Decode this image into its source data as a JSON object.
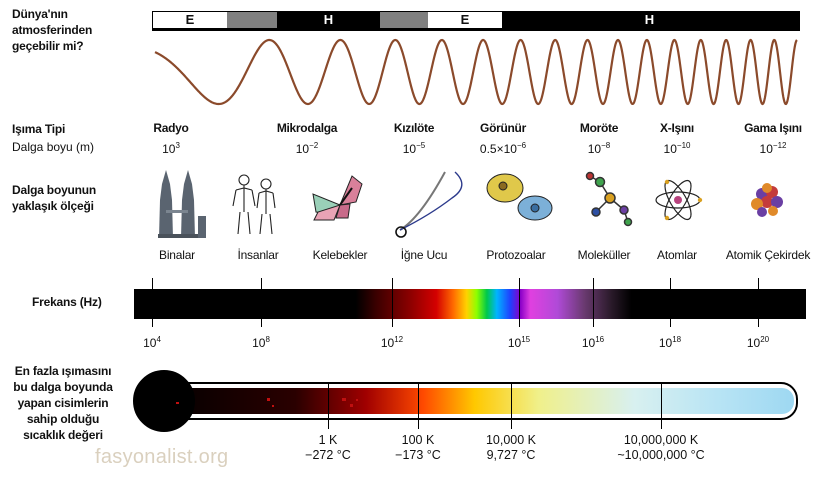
{
  "atmosphere": {
    "question": [
      "Dünya'nın",
      "atmosferinden",
      "geçebilir mi?"
    ],
    "bar": [
      {
        "label": "E",
        "kind": "light"
      },
      {
        "label": "",
        "kind": "gray"
      },
      {
        "label": "H",
        "kind": "dark"
      },
      {
        "label": "",
        "kind": "gray"
      },
      {
        "label": "E",
        "kind": "light"
      },
      {
        "label": "H",
        "kind": "dark"
      }
    ]
  },
  "row_labels": {
    "radiation_type": "Işıma Tipi",
    "wavelength": "Dalga boyu (m)",
    "scale": [
      "Dalga boyunun",
      "yaklaşık ölçeği"
    ],
    "frequency": "Frekans (Hz)",
    "temperature": [
      "En fazla ışımasını",
      "bu dalga boyunda",
      "yapan cisimlerin",
      "sahip olduğu",
      "sıcaklık değeri"
    ]
  },
  "categories": [
    {
      "name": "Radyo",
      "base": "10",
      "exp": "3"
    },
    {
      "name": "Mikrodalga",
      "base": "10",
      "exp": "−2"
    },
    {
      "name": "Kızılöte",
      "base": "10",
      "exp": "−5"
    },
    {
      "name": "Görünür",
      "base": "0.5×10",
      "exp": "−6"
    },
    {
      "name": "Moröte",
      "base": "10",
      "exp": "−8"
    },
    {
      "name": "X-Işını",
      "base": "10",
      "exp": "−10"
    },
    {
      "name": "Gama Işını",
      "base": "10",
      "exp": "−12"
    }
  ],
  "scale_objects": [
    {
      "label": "Binalar",
      "icon": "buildings-icon"
    },
    {
      "label": "İnsanlar",
      "icon": "humans-icon"
    },
    {
      "label": "Kelebekler",
      "icon": "butterfly-icon"
    },
    {
      "label": "İğne Ucu",
      "icon": "needle-icon"
    },
    {
      "label": "Protozoalar",
      "icon": "protozoa-icon"
    },
    {
      "label": "Moleküller",
      "icon": "molecule-icon"
    },
    {
      "label": "Atomlar",
      "icon": "atom-icon"
    },
    {
      "label": "Atomik Çekirdek",
      "icon": "nucleus-icon"
    }
  ],
  "frequency_ticks": [
    {
      "base": "10",
      "exp": "4"
    },
    {
      "base": "10",
      "exp": "8"
    },
    {
      "base": "10",
      "exp": "12"
    },
    {
      "base": "10",
      "exp": "15"
    },
    {
      "base": "10",
      "exp": "16"
    },
    {
      "base": "10",
      "exp": "18"
    },
    {
      "base": "10",
      "exp": "20"
    }
  ],
  "temperature_ticks": [
    {
      "k": "1 K",
      "c": "−272 °C"
    },
    {
      "k": "100 K",
      "c": "−173 °C"
    },
    {
      "k": "10,000 K",
      "c": "9,727 °C"
    },
    {
      "k": "10,000,000 K",
      "c": "~10,000,000 °C"
    }
  ],
  "watermark": "fasyonalist.org",
  "colors": {
    "wave": "#8b4a2b",
    "bar_dark": "#000000",
    "bar_gray": "#808080",
    "bar_light": "#ffffff"
  }
}
